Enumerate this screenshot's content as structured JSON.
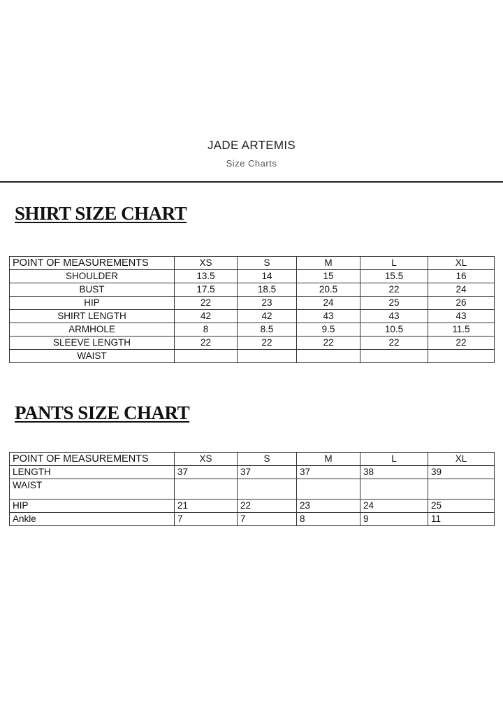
{
  "header": {
    "brand": "JADE ARTEMIS",
    "subtitle": "Size Charts"
  },
  "shirt": {
    "title": "SHIRT SIZE CHART",
    "columns": [
      "POINT OF MEASUREMENTS",
      "XS",
      "S",
      "M",
      "L",
      "XL"
    ],
    "rows": [
      [
        "SHOULDER",
        "13.5",
        "14",
        "15",
        "15.5",
        "16"
      ],
      [
        "BUST",
        "17.5",
        "18.5",
        "20.5",
        "22",
        "24"
      ],
      [
        "HIP",
        "22",
        "23",
        "24",
        "25",
        "26"
      ],
      [
        "SHIRT LENGTH",
        "42",
        "42",
        "43",
        "43",
        "43"
      ],
      [
        "ARMHOLE",
        "8",
        "8.5",
        "9.5",
        "10.5",
        "11.5"
      ],
      [
        "SLEEVE LENGTH",
        "22",
        "22",
        "22",
        "22",
        "22"
      ],
      [
        "WAIST",
        "",
        "",
        "",
        "",
        ""
      ]
    ]
  },
  "pants": {
    "title": "PANTS SIZE CHART",
    "columns": [
      "POINT OF MEASUREMENTS",
      "XS",
      "S",
      "M",
      "L",
      "XL"
    ],
    "rows": [
      [
        "LENGTH",
        "37",
        "37",
        "37",
        "38",
        "39"
      ],
      [
        "WAIST",
        "",
        "",
        "",
        "",
        ""
      ],
      [
        "HIP",
        "21",
        "22",
        "23",
        "24",
        "25"
      ],
      [
        "Ankle",
        "7",
        "7",
        "8",
        "9",
        "11"
      ]
    ]
  }
}
